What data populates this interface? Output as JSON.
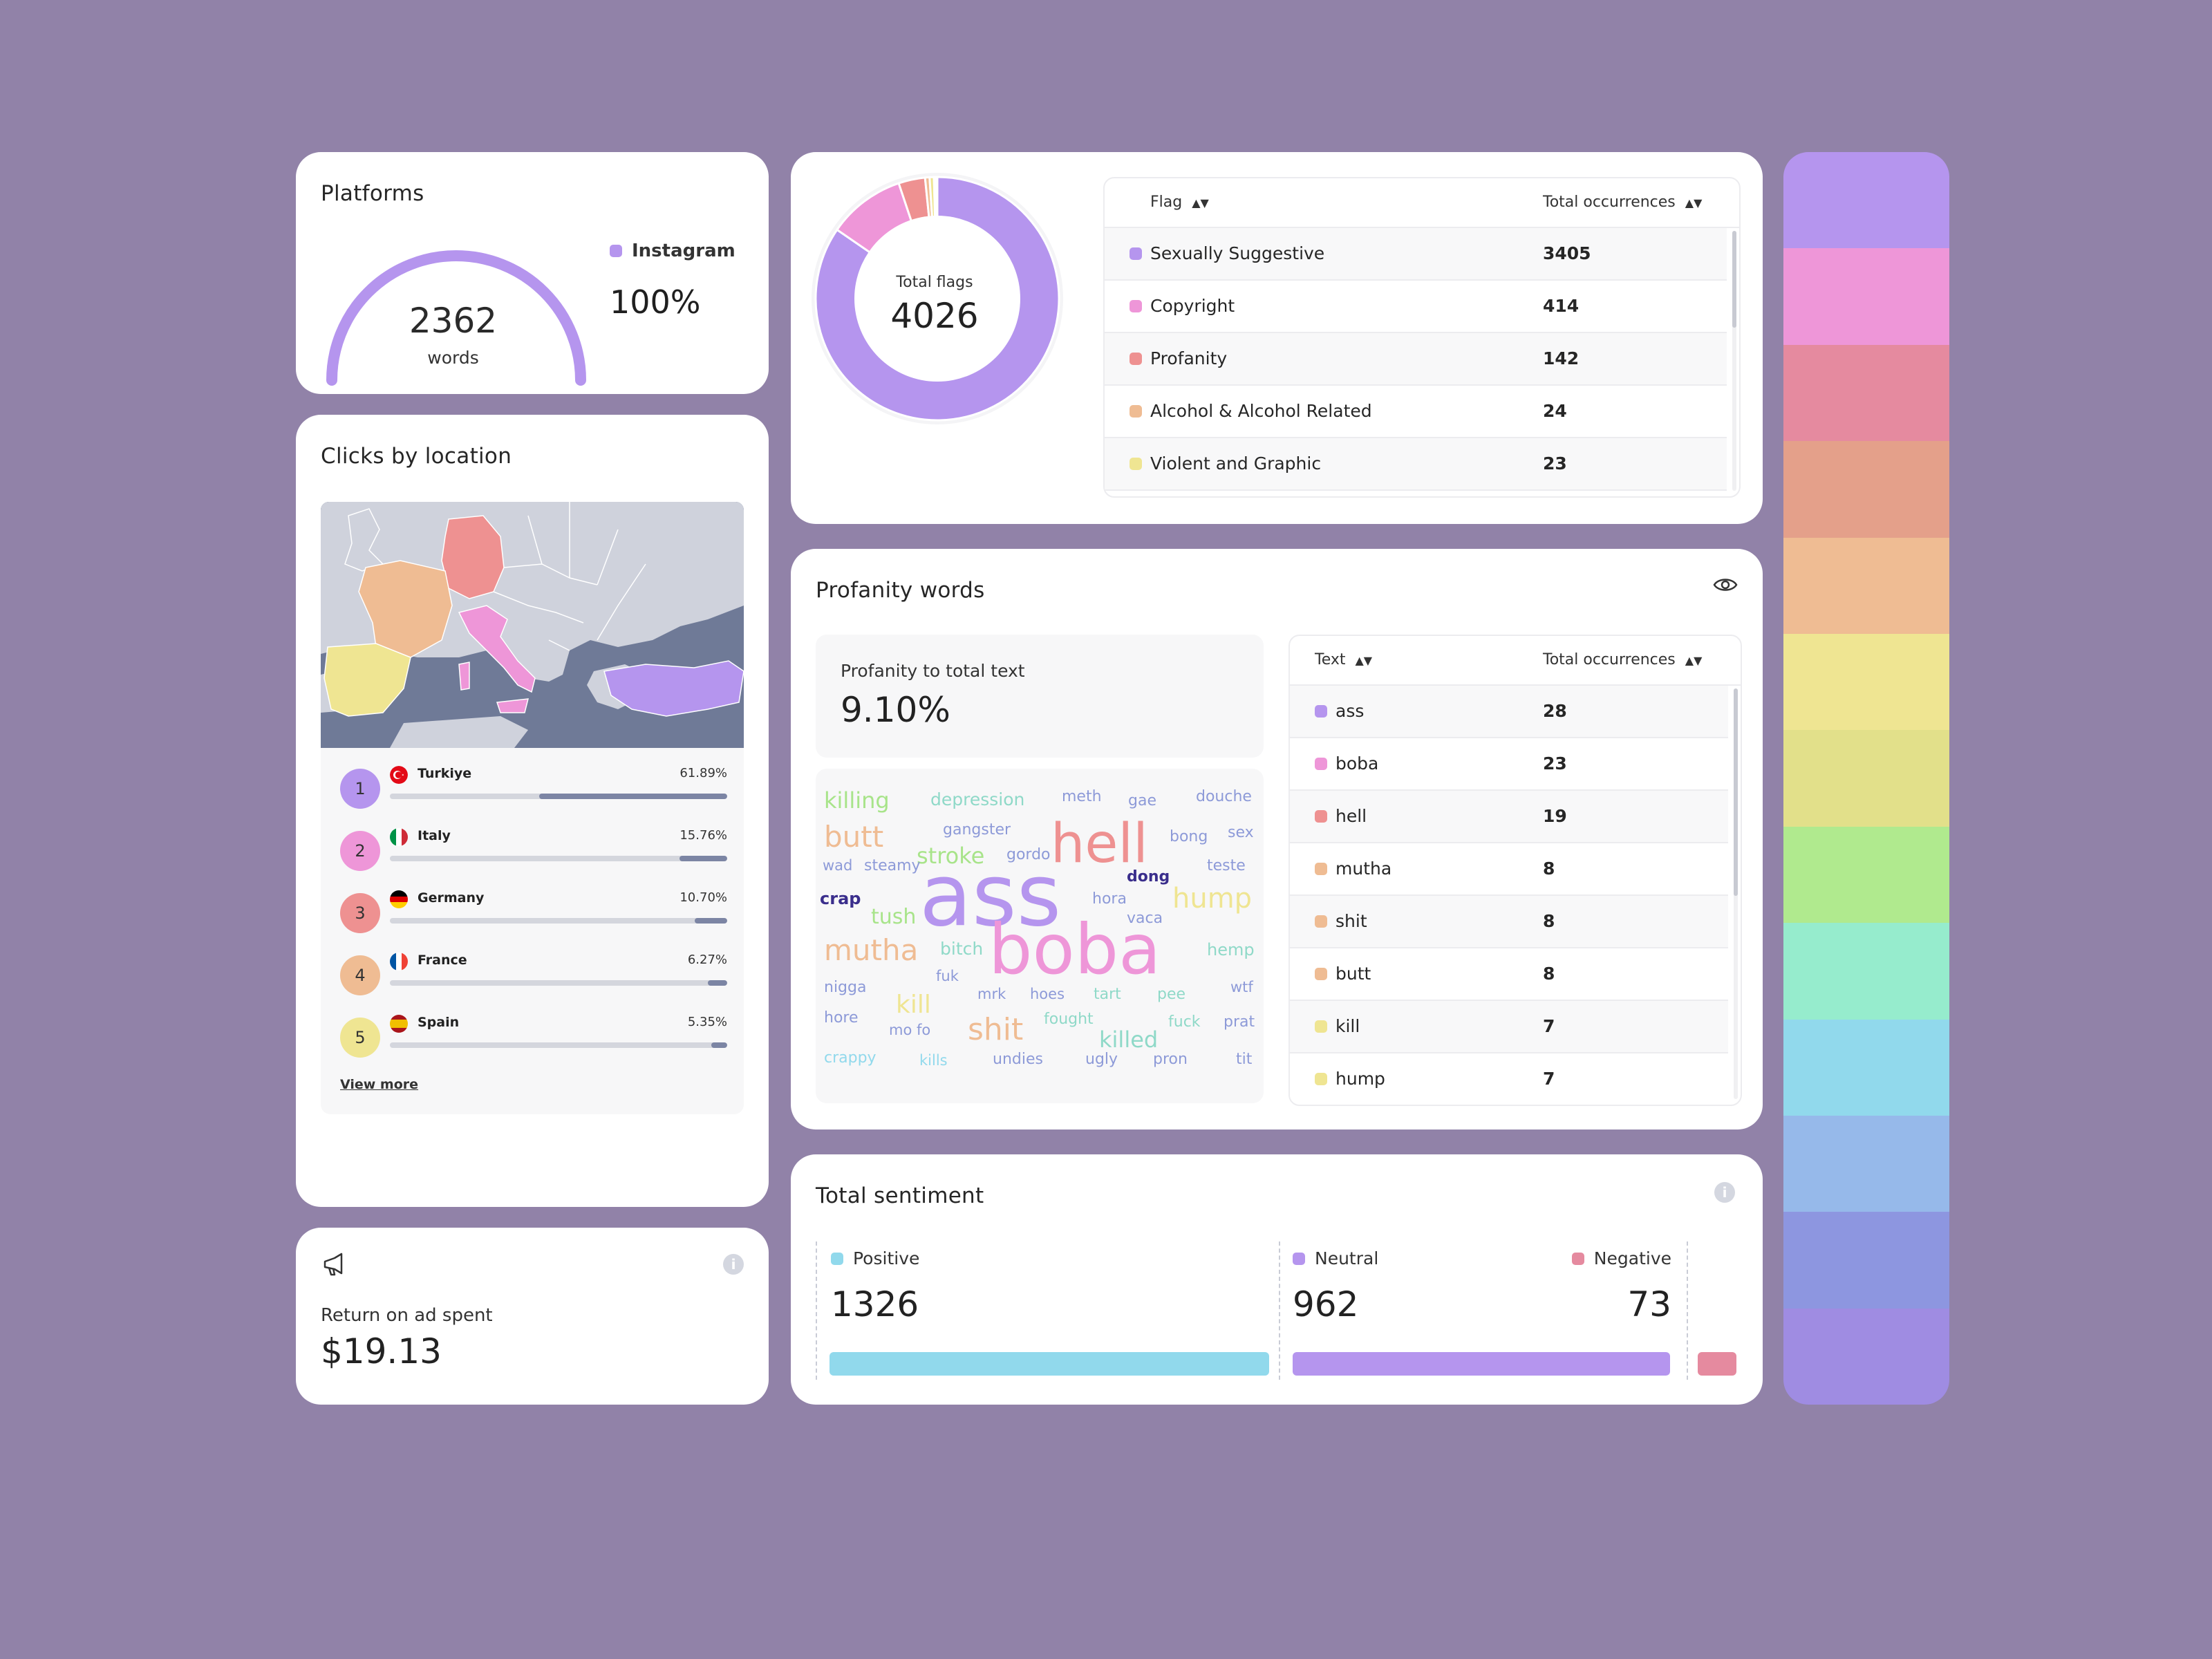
{
  "platforms": {
    "title": "Platforms",
    "gauge_value": "2362",
    "gauge_unit": "words",
    "legend_label": "Instagram",
    "legend_color": "#b595ee",
    "share": "100%",
    "gauge_fraction": 1.0
  },
  "clicks": {
    "title": "Clicks by location",
    "view_more": "View more",
    "locations": [
      {
        "rank": "1",
        "name": "Turkiye",
        "pct": "61.89%",
        "value": 61.89,
        "color": "#b595ee"
      },
      {
        "rank": "2",
        "name": "Italy",
        "pct": "15.76%",
        "value": 15.76,
        "color": "#ee96d8"
      },
      {
        "rank": "3",
        "name": "Germany",
        "pct": "10.70%",
        "value": 10.7,
        "color": "#ee9191"
      },
      {
        "rank": "4",
        "name": "France",
        "pct": "6.27%",
        "value": 6.27,
        "color": "#efbc93"
      },
      {
        "rank": "5",
        "name": "Spain",
        "pct": "5.35%",
        "value": 5.35,
        "color": "#efe592"
      }
    ]
  },
  "roas": {
    "icon": "megaphone-icon",
    "title": "Return on ad spent",
    "value": "$19.13"
  },
  "flags": {
    "donut_label": "Total flags",
    "donut_value": "4026",
    "columns": [
      "Flag",
      "Total occurrences"
    ],
    "rows": [
      {
        "name": "Sexually Suggestive",
        "count": "3405",
        "color": "#b595ee"
      },
      {
        "name": "Copyright",
        "count": "414",
        "color": "#ee96d8"
      },
      {
        "name": "Profanity",
        "count": "142",
        "color": "#ee9191"
      },
      {
        "name": "Alcohol & Alcohol Related",
        "count": "24",
        "color": "#efbc93"
      },
      {
        "name": "Violent and Graphic",
        "count": "23",
        "color": "#efe592"
      }
    ]
  },
  "chart_data": {
    "type": "pie",
    "categories": [
      "Sexually Suggestive",
      "Copyright",
      "Profanity",
      "Alcohol & Alcohol Related",
      "Violent and Graphic",
      "",
      "",
      "",
      ""
    ],
    "values": [
      3405,
      414,
      142,
      24,
      23,
      10,
      4,
      2,
      2
    ],
    "colors": [
      "#b595ee",
      "#ee96d8",
      "#ee9191",
      "#efbc93",
      "#efe592",
      "#b0ea8e",
      "#96eccd",
      "#91d9ec",
      "#96b2ee"
    ],
    "title": "Total flags"
  },
  "profanity": {
    "title": "Profanity words",
    "ratio_label": "Profanity to total text",
    "ratio_value": "9.10%",
    "columns": [
      "Text",
      "Total occurrences"
    ],
    "rows": [
      {
        "name": "ass",
        "count": "28",
        "color": "#b595ee"
      },
      {
        "name": "boba",
        "count": "23",
        "color": "#ee96d8"
      },
      {
        "name": "hell",
        "count": "19",
        "color": "#ee9191"
      },
      {
        "name": "mutha",
        "count": "8",
        "color": "#efbc93"
      },
      {
        "name": "shit",
        "count": "8",
        "color": "#efbc93"
      },
      {
        "name": "butt",
        "count": "8",
        "color": "#efbc93"
      },
      {
        "name": "kill",
        "count": "7",
        "color": "#efe592"
      },
      {
        "name": "hump",
        "count": "7",
        "color": "#efe592"
      }
    ],
    "cloud": [
      {
        "text": "killing",
        "color": "#a8e48a"
      },
      {
        "text": "depression",
        "color": "#8fd9c8"
      },
      {
        "text": "meth",
        "color": "#8d9ad8"
      },
      {
        "text": "gae",
        "color": "#8d9ad8"
      },
      {
        "text": "douche",
        "color": "#8d9ad8"
      },
      {
        "text": "butt",
        "color": "#efbc93"
      },
      {
        "text": "gangster",
        "color": "#8d9ad8"
      },
      {
        "text": "hell",
        "color": "#ee9191"
      },
      {
        "text": "bong",
        "color": "#8d9ad8"
      },
      {
        "text": "sex",
        "color": "#8d9ad8"
      },
      {
        "text": "stroke",
        "color": "#a8e48a"
      },
      {
        "text": "gordo",
        "color": "#8d9ad8"
      },
      {
        "text": "wad",
        "color": "#8d9ad8"
      },
      {
        "text": "steamy",
        "color": "#8d9ad8"
      },
      {
        "text": "dong",
        "color": "#3a2e8c"
      },
      {
        "text": "teste",
        "color": "#8d9ad8"
      },
      {
        "text": "ass",
        "color": "#b595ee"
      },
      {
        "text": "crap",
        "color": "#3a2e8c"
      },
      {
        "text": "hora",
        "color": "#8d9ad8"
      },
      {
        "text": "hump",
        "color": "#efe592"
      },
      {
        "text": "tush",
        "color": "#a8e48a"
      },
      {
        "text": "vaca",
        "color": "#8d9ad8"
      },
      {
        "text": "boba",
        "color": "#ee96d8"
      },
      {
        "text": "mutha",
        "color": "#efbc93"
      },
      {
        "text": "bitch",
        "color": "#8fd9c8"
      },
      {
        "text": "hemp",
        "color": "#8fd9c8"
      },
      {
        "text": "fuk",
        "color": "#8d9ad8"
      },
      {
        "text": "nigga",
        "color": "#8d9ad8"
      },
      {
        "text": "mrk",
        "color": "#8d9ad8"
      },
      {
        "text": "hoes",
        "color": "#8d9ad8"
      },
      {
        "text": "tart",
        "color": "#8fd9c8"
      },
      {
        "text": "pee",
        "color": "#8fd9c8"
      },
      {
        "text": "wtf",
        "color": "#8d9ad8"
      },
      {
        "text": "kill",
        "color": "#efe592"
      },
      {
        "text": "hore",
        "color": "#8d9ad8"
      },
      {
        "text": "fought",
        "color": "#8fd9c8"
      },
      {
        "text": "fuck",
        "color": "#8fd9c8"
      },
      {
        "text": "prat",
        "color": "#8d9ad8"
      },
      {
        "text": "mo fo",
        "color": "#8d9ad8"
      },
      {
        "text": "shit",
        "color": "#efbc93"
      },
      {
        "text": "killed",
        "color": "#8fd9c8"
      },
      {
        "text": "crappy",
        "color": "#91d9ec"
      },
      {
        "text": "kills",
        "color": "#91d9ec"
      },
      {
        "text": "undies",
        "color": "#8d9ad8"
      },
      {
        "text": "ugly",
        "color": "#8d9ad8"
      },
      {
        "text": "pron",
        "color": "#8d9ad8"
      },
      {
        "text": "tit",
        "color": "#8d9ad8"
      }
    ]
  },
  "sentiment": {
    "title": "Total sentiment",
    "positive": {
      "label": "Positive",
      "value": "1326",
      "color": "#91d9ec"
    },
    "neutral": {
      "label": "Neutral",
      "value": "962",
      "color": "#b595ee"
    },
    "negative": {
      "label": "Negative",
      "value": "73",
      "color": "#e58a9f"
    }
  },
  "palette": [
    "#b595ee",
    "#ee96d8",
    "#e58a9f",
    "#e4a08a",
    "#efbc93",
    "#efe592",
    "#e2e08a",
    "#b0ea8e",
    "#96eccd",
    "#91d9ec",
    "#96b9ea",
    "#8d96e0",
    "#9f8ce2"
  ]
}
